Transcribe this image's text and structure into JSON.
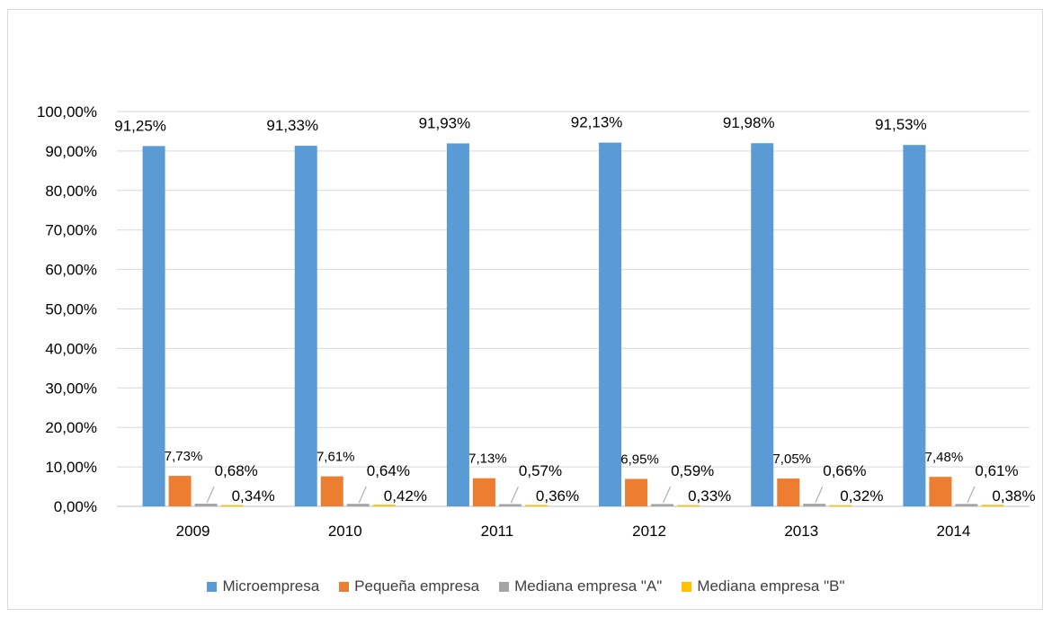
{
  "chart_data": {
    "type": "bar",
    "title": "",
    "xlabel": "",
    "ylabel": "",
    "categories": [
      "2009",
      "2010",
      "2011",
      "2012",
      "2013",
      "2014"
    ],
    "ylim": [
      0,
      100
    ],
    "yticks": [
      "0,00%",
      "10,00%",
      "20,00%",
      "30,00%",
      "40,00%",
      "50,00%",
      "60,00%",
      "70,00%",
      "80,00%",
      "90,00%",
      "100,00%"
    ],
    "grid": true,
    "legend_position": "bottom",
    "series": [
      {
        "name": "Microempresa",
        "color": "#5b9bd5",
        "values": [
          91.25,
          91.33,
          91.93,
          92.13,
          91.98,
          91.53
        ],
        "labels": [
          "91,25%",
          "91,33%",
          "91,93%",
          "92,13%",
          "91,98%",
          "91,53%"
        ]
      },
      {
        "name": "Pequeña empresa",
        "color": "#ed7d31",
        "values": [
          7.73,
          7.61,
          7.13,
          6.95,
          7.05,
          7.48
        ],
        "labels": [
          "7,73%",
          "7,61%",
          "7,13%",
          "6,95%",
          "7,05%",
          "7,48%"
        ]
      },
      {
        "name": "Mediana empresa \"A\"",
        "color": "#a5a5a5",
        "values": [
          0.68,
          0.64,
          0.57,
          0.59,
          0.66,
          0.61
        ],
        "labels": [
          "0,68%",
          "0,64%",
          "0,57%",
          "0,59%",
          "0,66%",
          "0,61%"
        ]
      },
      {
        "name": "Mediana empresa \"B\"",
        "color": "#ffc000",
        "values": [
          0.34,
          0.42,
          0.36,
          0.33,
          0.32,
          0.38
        ],
        "labels": [
          "0,34%",
          "0,42%",
          "0,36%",
          "0,33%",
          "0,32%",
          "0,38%"
        ]
      }
    ]
  }
}
